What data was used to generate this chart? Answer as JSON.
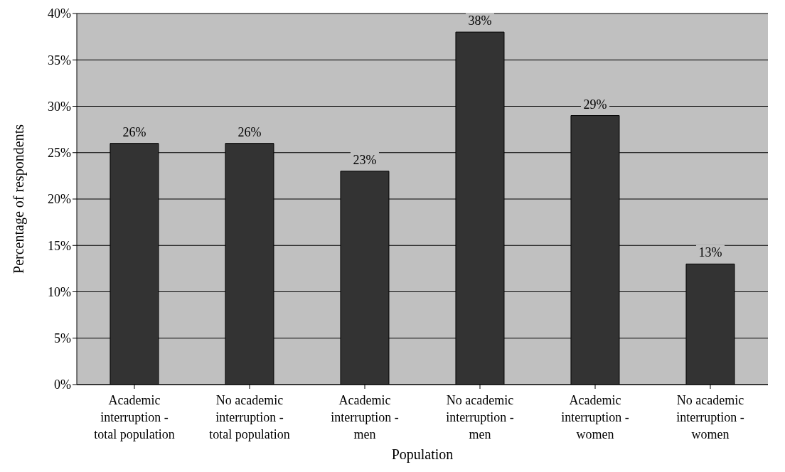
{
  "chart_data": {
    "type": "bar",
    "xlabel": "Population",
    "ylabel": "Percentage of respondents",
    "categories": [
      "Academic interruption - total population",
      "No academic interruption - total population",
      "Academic interruption - men",
      "No academic interruption - men",
      "Academic interruption - women",
      "No academic interruption - women"
    ],
    "values": [
      26,
      26,
      23,
      38,
      29,
      13
    ],
    "value_labels": [
      "26%",
      "26%",
      "23%",
      "38%",
      "29%",
      "13%"
    ],
    "color": "#333333",
    "ylim": [
      0,
      40
    ],
    "yticks": [
      {
        "value": 0,
        "label": "0%"
      },
      {
        "value": 5,
        "label": "5%"
      },
      {
        "value": 10,
        "label": "10%"
      },
      {
        "value": 15,
        "label": "15%"
      },
      {
        "value": 20,
        "label": "20%"
      },
      {
        "value": 25,
        "label": "25%"
      },
      {
        "value": 30,
        "label": "30%"
      },
      {
        "value": 35,
        "label": "35%"
      },
      {
        "value": 40,
        "label": "40%"
      }
    ],
    "grid": "y"
  }
}
